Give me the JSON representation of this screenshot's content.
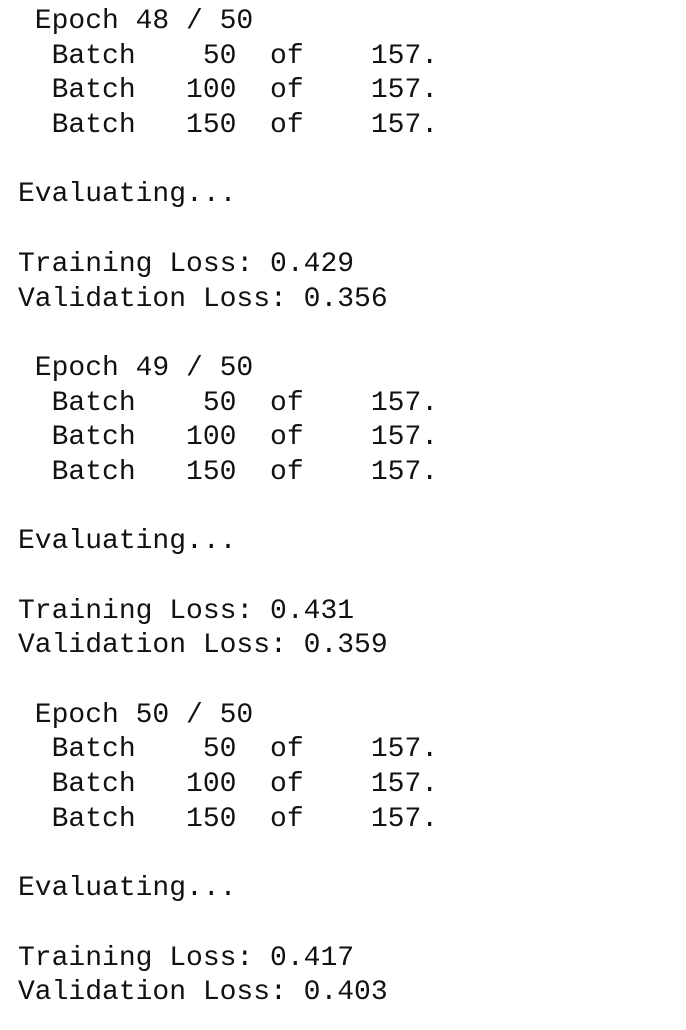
{
  "console": {
    "lines": [
      " Epoch 48 / 50",
      "  Batch    50  of    157.",
      "  Batch   100  of    157.",
      "  Batch   150  of    157.",
      "",
      "Evaluating...",
      "",
      "Training Loss: 0.429",
      "Validation Loss: 0.356",
      "",
      " Epoch 49 / 50",
      "  Batch    50  of    157.",
      "  Batch   100  of    157.",
      "  Batch   150  of    157.",
      "",
      "Evaluating...",
      "",
      "Training Loss: 0.431",
      "Validation Loss: 0.359",
      "",
      " Epoch 50 / 50",
      "  Batch    50  of    157.",
      "  Batch   100  of    157.",
      "  Batch   150  of    157.",
      "",
      "Evaluating...",
      "",
      "Training Loss: 0.417",
      "Validation Loss: 0.403"
    ]
  }
}
